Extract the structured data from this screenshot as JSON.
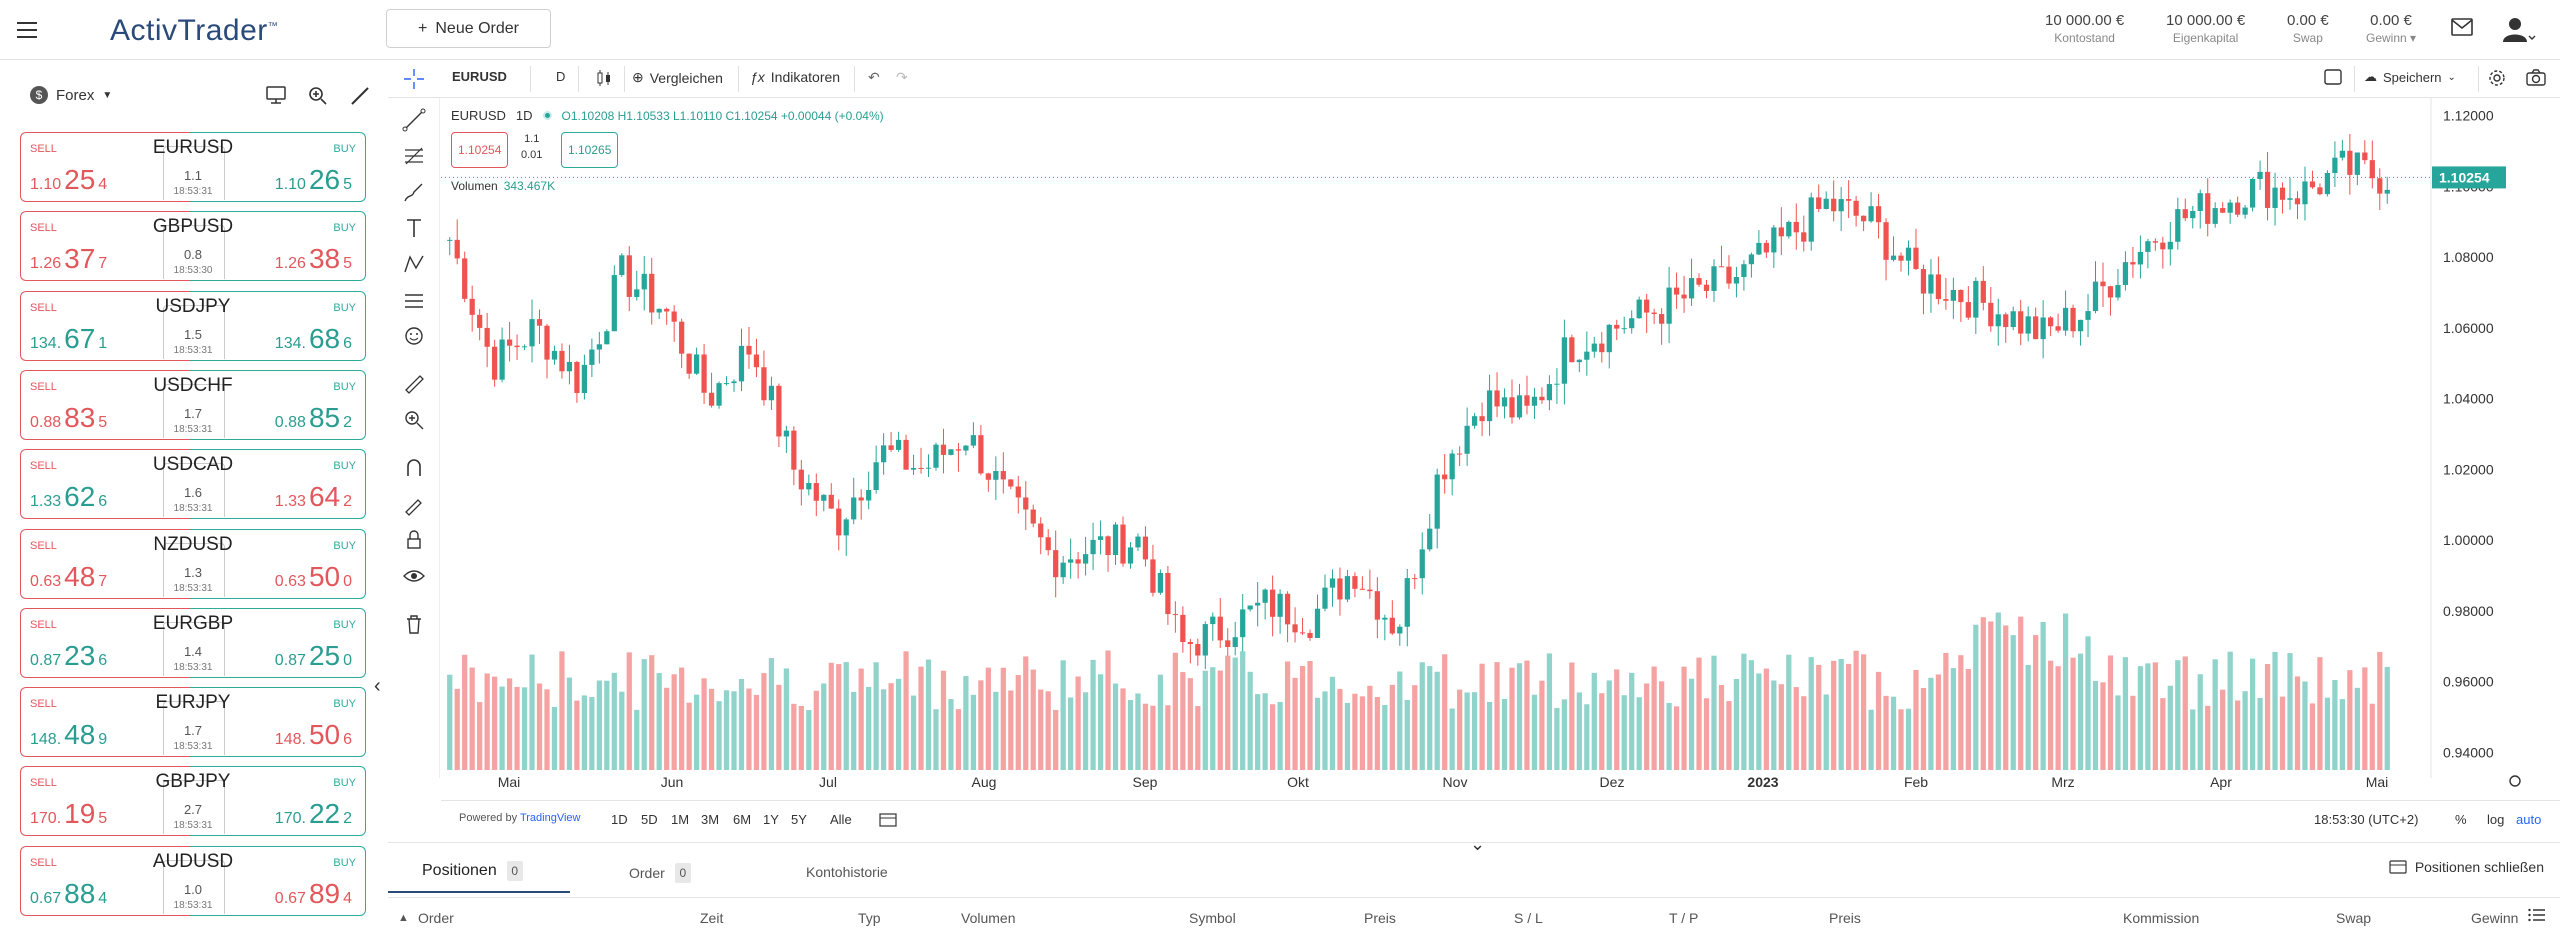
{
  "app": {
    "logo": "ActivTrader",
    "logo_mark": "™",
    "new_order": "Neue Order"
  },
  "account": [
    {
      "value": "10 000.00 €",
      "label": "Kontostand"
    },
    {
      "value": "10 000.00 €",
      "label": "Eigenkapital"
    },
    {
      "value": "0.00 €",
      "label": "Swap"
    },
    {
      "value": "0.00 €",
      "label": "Gewinn"
    }
  ],
  "sidebar": {
    "category": "Forex",
    "pairs": [
      {
        "symbol": "EURUSD",
        "sell_label": "SELL",
        "buy_label": "BUY",
        "sell": [
          "1.10",
          "25",
          "4"
        ],
        "buy": [
          "1.10",
          "26",
          "5"
        ],
        "spread": "1.1",
        "time": "18:53:31",
        "sell_color": "red",
        "buy_color": "green"
      },
      {
        "symbol": "GBPUSD",
        "sell_label": "SELL",
        "buy_label": "BUY",
        "sell": [
          "1.26",
          "37",
          "7"
        ],
        "buy": [
          "1.26",
          "38",
          "5"
        ],
        "spread": "0.8",
        "time": "18:53:30",
        "sell_color": "red",
        "buy_color": "red"
      },
      {
        "symbol": "USDJPY",
        "sell_label": "SELL",
        "buy_label": "BUY",
        "sell": [
          "134.",
          "67",
          "1"
        ],
        "buy": [
          "134.",
          "68",
          "6"
        ],
        "spread": "1.5",
        "time": "18:53:31",
        "sell_color": "green",
        "buy_color": "green"
      },
      {
        "symbol": "USDCHF",
        "sell_label": "SELL",
        "buy_label": "BUY",
        "sell": [
          "0.88",
          "83",
          "5"
        ],
        "buy": [
          "0.88",
          "85",
          "2"
        ],
        "spread": "1.7",
        "time": "18:53:31",
        "sell_color": "red",
        "buy_color": "green"
      },
      {
        "symbol": "USDCAD",
        "sell_label": "SELL",
        "buy_label": "BUY",
        "sell": [
          "1.33",
          "62",
          "6"
        ],
        "buy": [
          "1.33",
          "64",
          "2"
        ],
        "spread": "1.6",
        "time": "18:53:31",
        "sell_color": "green",
        "buy_color": "red"
      },
      {
        "symbol": "NZDUSD",
        "sell_label": "SELL",
        "buy_label": "BUY",
        "sell": [
          "0.63",
          "48",
          "7"
        ],
        "buy": [
          "0.63",
          "50",
          "0"
        ],
        "spread": "1.3",
        "time": "18:53:31",
        "sell_color": "red",
        "buy_color": "red"
      },
      {
        "symbol": "EURGBP",
        "sell_label": "SELL",
        "buy_label": "BUY",
        "sell": [
          "0.87",
          "23",
          "6"
        ],
        "buy": [
          "0.87",
          "25",
          "0"
        ],
        "spread": "1.4",
        "time": "18:53:31",
        "sell_color": "green",
        "buy_color": "green"
      },
      {
        "symbol": "EURJPY",
        "sell_label": "SELL",
        "buy_label": "BUY",
        "sell": [
          "148.",
          "48",
          "9"
        ],
        "buy": [
          "148.",
          "50",
          "6"
        ],
        "spread": "1.7",
        "time": "18:53:31",
        "sell_color": "green",
        "buy_color": "red"
      },
      {
        "symbol": "GBPJPY",
        "sell_label": "SELL",
        "buy_label": "BUY",
        "sell": [
          "170.",
          "19",
          "5"
        ],
        "buy": [
          "170.",
          "22",
          "2"
        ],
        "spread": "2.7",
        "time": "18:53:31",
        "sell_color": "red",
        "buy_color": "green"
      },
      {
        "symbol": "AUDUSD",
        "sell_label": "SELL",
        "buy_label": "BUY",
        "sell": [
          "0.67",
          "88",
          "4"
        ],
        "buy": [
          "0.67",
          "89",
          "4"
        ],
        "spread": "1.0",
        "time": "18:53:31",
        "sell_color": "green",
        "buy_color": "red"
      }
    ]
  },
  "chart_toolbar": {
    "symbol": "EURUSD",
    "interval": "D",
    "compare": "Vergleichen",
    "indicators": "Indikatoren",
    "save": "Speichern"
  },
  "chart": {
    "symbol": "EURUSD",
    "interval": "1D",
    "open": "O1.10208",
    "high": "H1.10533",
    "low": "L1.10110",
    "close": "C1.10254",
    "change": "+0.00044 (+0.04%)",
    "sell_price": "1.10254",
    "buy_price": "1.10265",
    "spread": "1.1",
    "lot": "0.01",
    "volume_label": "Volumen",
    "volume_value": "343.467K",
    "last_price": "1.10254"
  },
  "chart_data": {
    "type": "candlestick",
    "symbol": "EURUSD",
    "y_ticks": [
      "1.12000",
      "1.10000",
      "1.08000",
      "1.06000",
      "1.04000",
      "1.02000",
      "1.00000",
      "0.98000",
      "0.96000",
      "0.94000"
    ],
    "ylim": [
      0.935,
      1.125
    ],
    "x_ticks": [
      "Mai",
      "Jun",
      "Jul",
      "Aug",
      "Sep",
      "Okt",
      "Nov",
      "Dez",
      "2023",
      "Feb",
      "Mrz",
      "Apr",
      "Mai"
    ],
    "close_path": [
      1.085,
      1.05,
      1.06,
      1.045,
      1.075,
      1.065,
      1.04,
      1.055,
      1.02,
      1.005,
      1.025,
      1.02,
      1.03,
      1.01,
      0.995,
      0.998,
      1.0,
      0.97,
      0.975,
      0.982,
      0.978,
      0.992,
      0.975,
      1.02,
      1.04,
      1.035,
      1.055,
      1.06,
      1.065,
      1.07,
      1.075,
      1.085,
      1.095,
      1.09,
      1.075,
      1.07,
      1.065,
      1.058,
      1.065,
      1.08,
      1.09,
      1.095,
      1.1,
      1.098,
      1.105,
      1.1025
    ]
  },
  "bottom_bar": {
    "powered": "Powered by",
    "tradingview": "TradingView",
    "ranges": [
      "1D",
      "5D",
      "1M",
      "3M",
      "6M",
      "1Y",
      "5Y",
      "Alle"
    ],
    "clock": "18:53:30 (UTC+2)",
    "pct": "%",
    "log": "log",
    "auto": "auto"
  },
  "panel": {
    "tabs": [
      {
        "label": "Positionen",
        "count": "0"
      },
      {
        "label": "Order",
        "count": "0"
      },
      {
        "label": "Kontohistorie"
      }
    ],
    "close_positions": "Positionen schließen",
    "columns": [
      "Order",
      "Zeit",
      "Typ",
      "Volumen",
      "Symbol",
      "Preis",
      "S / L",
      "T / P",
      "Preis",
      "Kommission",
      "Swap",
      "Gewinn"
    ]
  },
  "colors": {
    "up": "#26a69a",
    "down": "#ef5350",
    "vol_up": "#8fd3cb",
    "vol_down": "#f5a3a2",
    "brand": "#2a4a7a"
  }
}
